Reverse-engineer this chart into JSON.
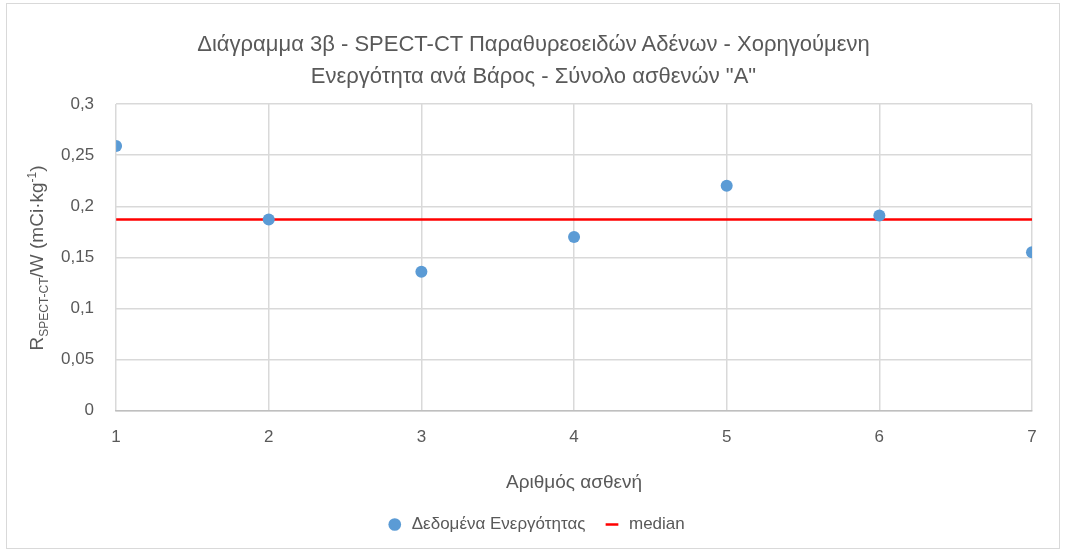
{
  "chart_data": {
    "type": "scatter",
    "title": "Διάγραμμα 3β - SPECT-CT Παραθυρεοειδών Αδένων - Χορηγούμενη Ενεργότητα ανά Βάρος - Σύνολο ασθενών \"Α\"",
    "xlabel": "Αριθμός ασθενή",
    "ylabel": "R$_{SPECT-CT}$/W (mCi·kg$^{-1}$)",
    "x": [
      1,
      2,
      3,
      4,
      5,
      6,
      7
    ],
    "series": [
      {
        "name": "Δεδομένα Ενεργότητας",
        "color": "#5b9bd5",
        "marker": "circle",
        "values": [
          0.259,
          0.187,
          0.136,
          0.17,
          0.22,
          0.191,
          0.155
        ]
      },
      {
        "name": "median",
        "type": "line",
        "color": "#ff0000",
        "x": [
          1,
          7
        ],
        "values": [
          0.187,
          0.187
        ]
      }
    ],
    "xlim": [
      1,
      7
    ],
    "xticks": [
      1,
      2,
      3,
      4,
      5,
      6,
      7
    ],
    "ylim": [
      0,
      0.3
    ],
    "yticks": [
      0,
      {
        "value": 0.05,
        "label": "0,05"
      },
      {
        "value": 0.1,
        "label": "0,1"
      },
      {
        "value": 0.15,
        "label": "0,15"
      },
      {
        "value": 0.2,
        "label": "0,2"
      },
      {
        "value": 0.25,
        "label": "0,25"
      },
      {
        "value": 0.3,
        "label": "0,3"
      }
    ],
    "grid": true,
    "legend": "bottom"
  }
}
